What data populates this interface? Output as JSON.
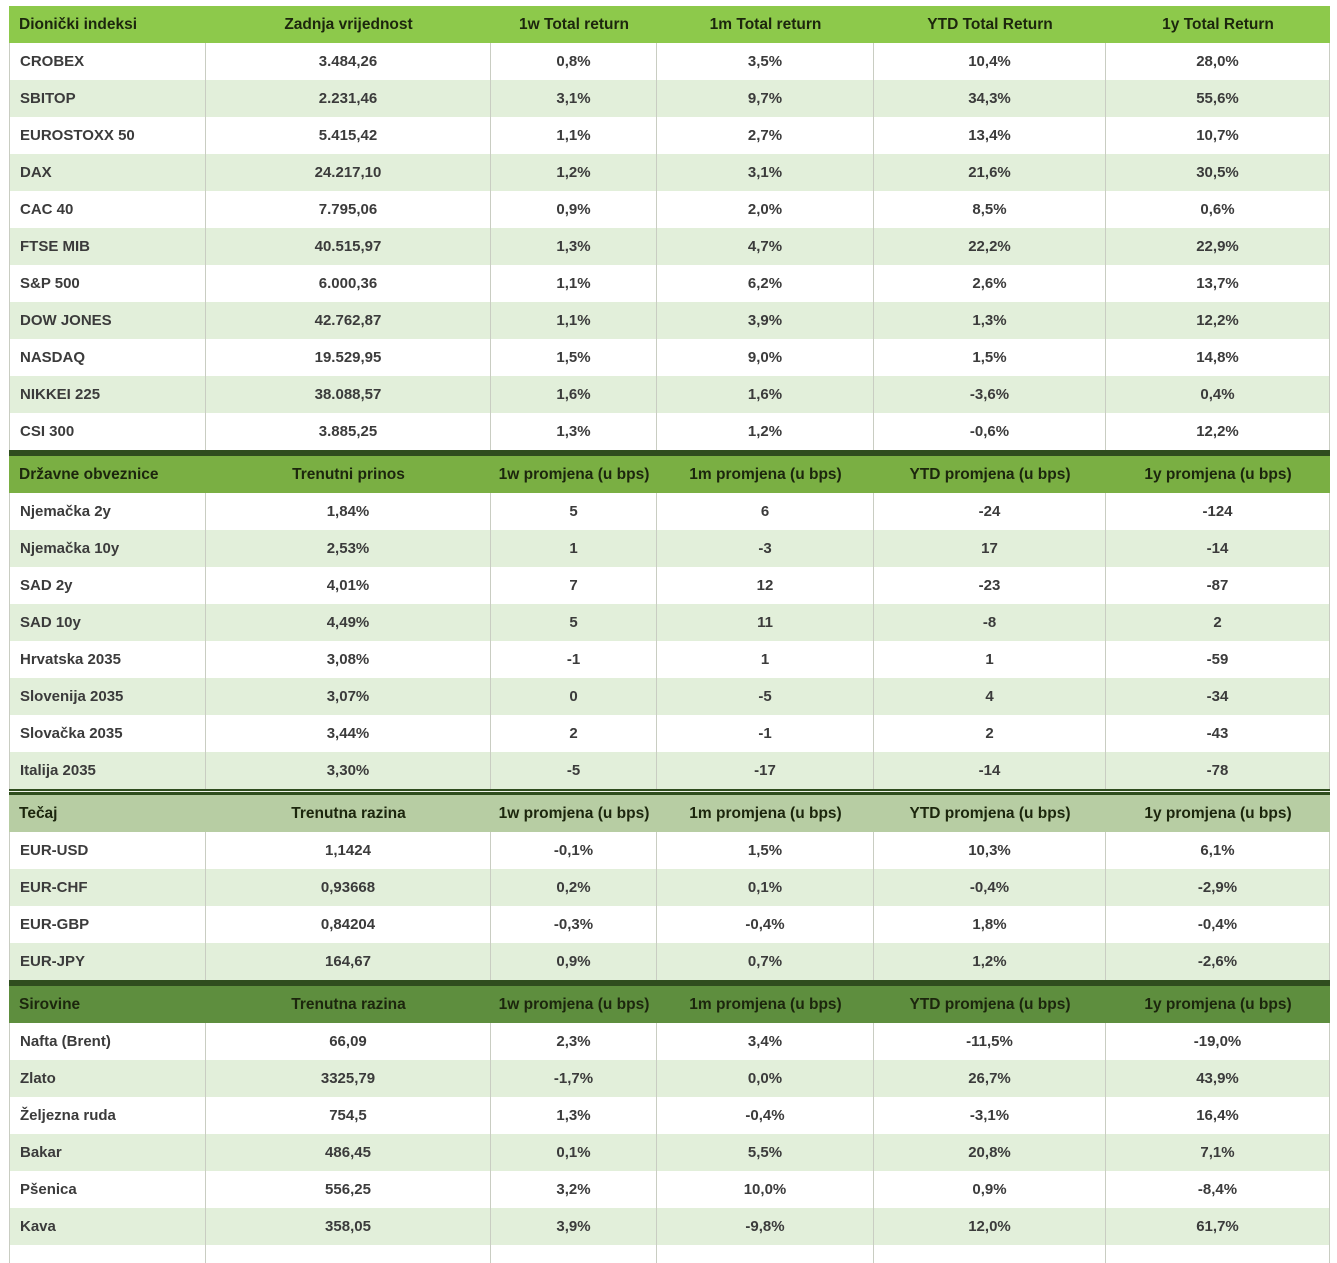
{
  "colors": {
    "row_alt": "#e2efda",
    "divider": "#2f4d1e",
    "header_text": "#1c260d",
    "body_text": "#3b3b3b",
    "grid_line": "#c9cdc2",
    "background": "#ffffff"
  },
  "tables": [
    {
      "id": "stock-indices",
      "header_color": "#8dc94b",
      "columns": [
        "Dionički indeksi",
        "Zadnja vrijednost",
        "1w Total return",
        "1m Total return",
        "YTD Total Return",
        "1y Total Return"
      ],
      "rows": [
        [
          "CROBEX",
          "3.484,26",
          "0,8%",
          "3,5%",
          "10,4%",
          "28,0%"
        ],
        [
          "SBITOP",
          "2.231,46",
          "3,1%",
          "9,7%",
          "34,3%",
          "55,6%"
        ],
        [
          "EUROSTOXX 50",
          "5.415,42",
          "1,1%",
          "2,7%",
          "13,4%",
          "10,7%"
        ],
        [
          "DAX",
          "24.217,10",
          "1,2%",
          "3,1%",
          "21,6%",
          "30,5%"
        ],
        [
          "CAC 40",
          "7.795,06",
          "0,9%",
          "2,0%",
          "8,5%",
          "0,6%"
        ],
        [
          "FTSE MIB",
          "40.515,97",
          "1,3%",
          "4,7%",
          "22,2%",
          "22,9%"
        ],
        [
          "S&P 500",
          "6.000,36",
          "1,1%",
          "6,2%",
          "2,6%",
          "13,7%"
        ],
        [
          "DOW JONES",
          "42.762,87",
          "1,1%",
          "3,9%",
          "1,3%",
          "12,2%"
        ],
        [
          "NASDAQ",
          "19.529,95",
          "1,5%",
          "9,0%",
          "1,5%",
          "14,8%"
        ],
        [
          "NIKKEI 225",
          "38.088,57",
          "1,6%",
          "1,6%",
          "-3,6%",
          "0,4%"
        ],
        [
          "CSI 300",
          "3.885,25",
          "1,3%",
          "1,2%",
          "-0,6%",
          "12,2%"
        ]
      ]
    },
    {
      "id": "government-bonds",
      "header_color": "#7aaf43",
      "columns": [
        "Državne obveznice",
        "Trenutni prinos",
        "1w promjena (u bps)",
        "1m promjena (u bps)",
        "YTD promjena (u bps)",
        "1y promjena (u bps)"
      ],
      "rows": [
        [
          "Njemačka 2y",
          "1,84%",
          "5",
          "6",
          "-24",
          "-124"
        ],
        [
          "Njemačka 10y",
          "2,53%",
          "1",
          "-3",
          "17",
          "-14"
        ],
        [
          "SAD 2y",
          "4,01%",
          "7",
          "12",
          "-23",
          "-87"
        ],
        [
          "SAD 10y",
          "4,49%",
          "5",
          "11",
          "-8",
          "2"
        ],
        [
          "Hrvatska 2035",
          "3,08%",
          "-1",
          "1",
          "1",
          "-59"
        ],
        [
          "Slovenija 2035",
          "3,07%",
          "0",
          "-5",
          "4",
          "-34"
        ],
        [
          "Slovačka 2035",
          "3,44%",
          "2",
          "-1",
          "2",
          "-43"
        ],
        [
          "Italija 2035",
          "3,30%",
          "-5",
          "-17",
          "-14",
          "-78"
        ]
      ]
    },
    {
      "id": "fx-rates",
      "header_color": "#b7cda3",
      "columns": [
        "Tečaj",
        "Trenutna razina",
        "1w promjena (u bps)",
        "1m promjena (u bps)",
        "YTD promjena (u bps)",
        "1y promjena (u bps)"
      ],
      "rows": [
        [
          "EUR-USD",
          "1,1424",
          "-0,1%",
          "1,5%",
          "10,3%",
          "6,1%"
        ],
        [
          "EUR-CHF",
          "0,93668",
          "0,2%",
          "0,1%",
          "-0,4%",
          "-2,9%"
        ],
        [
          "EUR-GBP",
          "0,84204",
          "-0,3%",
          "-0,4%",
          "1,8%",
          "-0,4%"
        ],
        [
          "EUR-JPY",
          "164,67",
          "0,9%",
          "0,7%",
          "1,2%",
          "-2,6%"
        ]
      ]
    },
    {
      "id": "commodities",
      "header_color": "#5e8e3e",
      "columns": [
        "Sirovine",
        "Trenutna razina",
        "1w promjena (u bps)",
        "1m promjena (u bps)",
        "YTD promjena (u bps)",
        "1y promjena (u bps)"
      ],
      "rows": [
        [
          "Nafta (Brent)",
          "66,09",
          "2,3%",
          "3,4%",
          "-11,5%",
          "-19,0%"
        ],
        [
          "Zlato",
          "3325,79",
          "-1,7%",
          "0,0%",
          "26,7%",
          "43,9%"
        ],
        [
          "Željezna ruda",
          "754,5",
          "1,3%",
          "-0,4%",
          "-3,1%",
          "16,4%"
        ],
        [
          "Bakar",
          "486,45",
          "0,1%",
          "5,5%",
          "20,8%",
          "7,1%"
        ],
        [
          "Pšenica",
          "556,25",
          "3,2%",
          "10,0%",
          "0,9%",
          "-8,4%"
        ],
        [
          "Kava",
          "358,05",
          "3,9%",
          "-9,8%",
          "12,0%",
          "61,7%"
        ]
      ]
    }
  ]
}
